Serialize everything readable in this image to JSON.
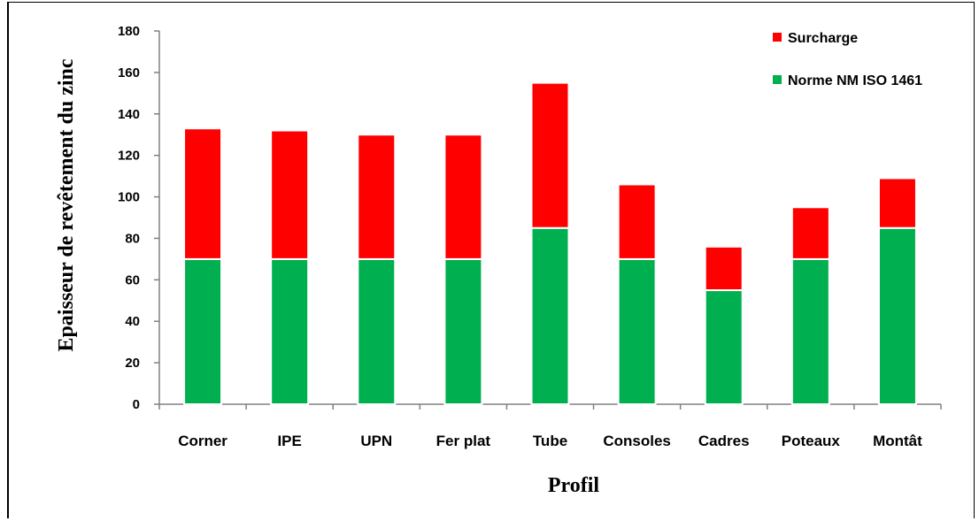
{
  "chart_data": {
    "type": "bar",
    "stacked": true,
    "xlabel": "Profil",
    "ylabel": "Epaisseur de revêtement du zinc",
    "ylim": [
      0,
      180
    ],
    "yticks": [
      0,
      20,
      40,
      60,
      80,
      100,
      120,
      140,
      160,
      180
    ],
    "categories": [
      "Corner",
      "IPE",
      "UPN",
      "Fer plat",
      "Tube",
      "Consoles",
      "Cadres",
      "Poteaux",
      "Montât"
    ],
    "series": [
      {
        "name": "Norme NM ISO 1461",
        "color": "#00b050",
        "values": [
          70,
          70,
          70,
          70,
          85,
          70,
          55,
          70,
          85
        ]
      },
      {
        "name": "Surcharge",
        "color": "#ff0000",
        "values": [
          63,
          62,
          60,
          60,
          70,
          36,
          21,
          25,
          24
        ]
      }
    ],
    "legend_order": [
      "Surcharge",
      "Norme NM ISO 1461"
    ],
    "legend_position": "top-right",
    "grid": false
  }
}
